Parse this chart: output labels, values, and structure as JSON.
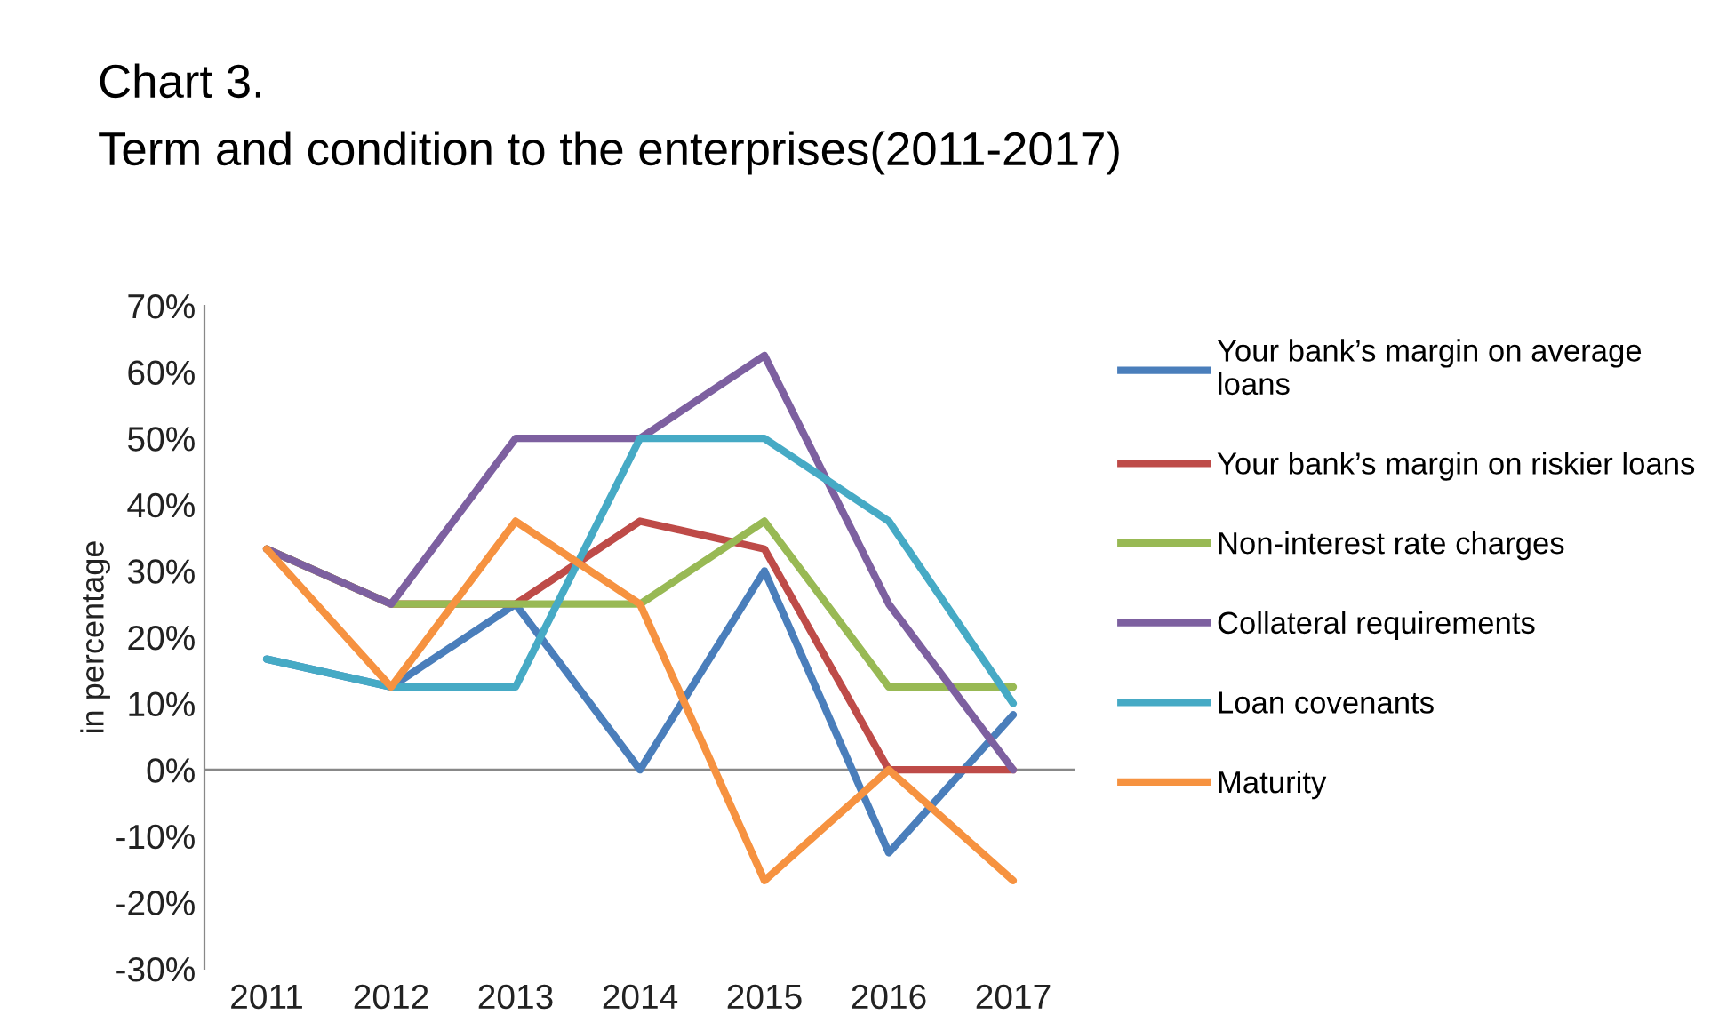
{
  "chart_data": {
    "type": "line",
    "title": "Chart 3.",
    "subtitle": "Term and condition to the enterprises(2011-2017)",
    "ylabel": "in percentage",
    "categories": [
      "2011",
      "2012",
      "2013",
      "2014",
      "2015",
      "2016",
      "2017"
    ],
    "series": [
      {
        "name": "Your bank’s margin on average\nloans",
        "color": "#4a7ebb",
        "values": [
          16.7,
          12.5,
          25,
          0,
          30,
          -12.5,
          8.3
        ]
      },
      {
        "name": "Your bank’s margin on riskier loans",
        "color": "#be4b48",
        "values": [
          33.3,
          25,
          25,
          37.5,
          33.3,
          0,
          0
        ]
      },
      {
        "name": "Non-interest rate charges",
        "color": "#98b954",
        "values": [
          33.3,
          25,
          25,
          25,
          37.5,
          12.5,
          12.5
        ]
      },
      {
        "name": "Collateral requirements",
        "color": "#7d60a0",
        "values": [
          33.3,
          25,
          50,
          50,
          62.5,
          25,
          0
        ]
      },
      {
        "name": "Loan covenants",
        "color": "#46aac5",
        "values": [
          16.7,
          12.5,
          12.5,
          50,
          50,
          37.5,
          10
        ]
      },
      {
        "name": "Maturity",
        "color": "#f69240",
        "values": [
          33.3,
          12.5,
          37.5,
          25,
          -16.7,
          0,
          -16.7
        ]
      }
    ],
    "ylim": [
      -30,
      70
    ],
    "yticks": [
      {
        "value": -30,
        "label": "-30%"
      },
      {
        "value": -20,
        "label": "-20%"
      },
      {
        "value": -10,
        "label": "-10%"
      },
      {
        "value": 0,
        "label": "0%"
      },
      {
        "value": 10,
        "label": "10%"
      },
      {
        "value": 20,
        "label": "20%"
      },
      {
        "value": 30,
        "label": "30%"
      },
      {
        "value": 40,
        "label": "40%"
      },
      {
        "value": 50,
        "label": "50%"
      },
      {
        "value": 60,
        "label": "60%"
      },
      {
        "value": 70,
        "label": "70%"
      }
    ],
    "ref_lines": [
      {
        "axis": "y",
        "value": 0,
        "color": "#888888"
      }
    ],
    "grid": false,
    "legend": "right",
    "marker": "none",
    "line_style": "solid"
  }
}
